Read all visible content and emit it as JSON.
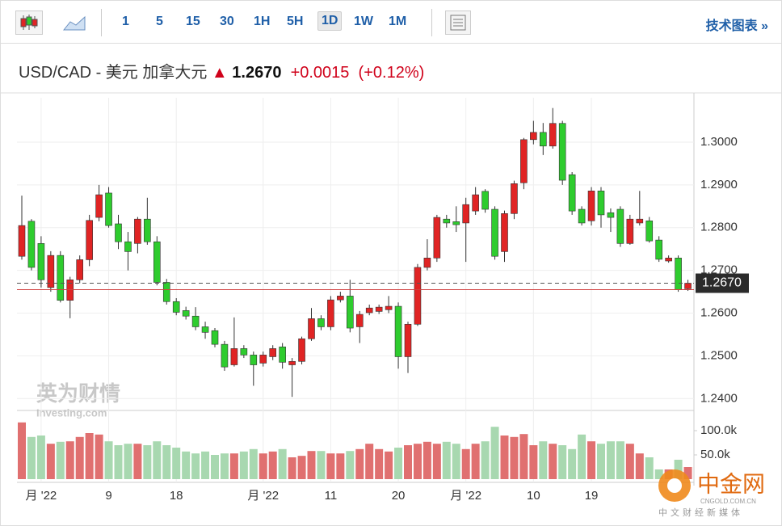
{
  "toolbar": {
    "intervals": [
      "1",
      "5",
      "15",
      "30",
      "1H",
      "5H",
      "1D",
      "1W",
      "1M"
    ],
    "selected": "1D",
    "link": "技术图表 »"
  },
  "header": {
    "pair": "USD/CAD - 美元 加拿大元",
    "price": "1.2670",
    "change": "+0.0015",
    "change_pct": "(+0.12%)"
  },
  "watermarks": {
    "left": "英为财情",
    "left_sub": "Investing.com",
    "right": "中金网",
    "right_url": "CNGOLD.COM.CN",
    "right_sub": "中文财经新媒体"
  },
  "chart_data": {
    "type": "candlestick",
    "categories": [
      null,
      null,
      "月 '22",
      null,
      null,
      null,
      null,
      null,
      null,
      "9",
      null,
      null,
      null,
      null,
      null,
      null,
      "18",
      null,
      null,
      null,
      null,
      null,
      null,
      null,
      null,
      "月 '22",
      null,
      null,
      null,
      null,
      null,
      null,
      "11",
      null,
      null,
      null,
      null,
      null,
      null,
      "20",
      null,
      null,
      null,
      null,
      null,
      null,
      "月 '22",
      null,
      null,
      null,
      null,
      null,
      null,
      "10",
      null,
      null,
      null,
      null,
      null,
      "19",
      null,
      null,
      null,
      null,
      null,
      null,
      null,
      null,
      null,
      null
    ],
    "open": [
      1.2733,
      1.2815,
      1.2763,
      1.266,
      1.2735,
      1.263,
      1.2678,
      1.2725,
      1.2824,
      1.2881,
      1.2809,
      1.2767,
      1.2763,
      1.282,
      1.2767,
      1.2672,
      1.2627,
      1.2606,
      1.2593,
      1.2568,
      1.2559,
      1.2527,
      1.2479,
      1.2517,
      1.2502,
      1.2483,
      1.2498,
      1.2521,
      1.2479,
      1.2487,
      1.254,
      1.2587,
      1.2568,
      1.2631,
      1.264,
      1.2568,
      1.2601,
      1.2604,
      1.2608,
      1.2616,
      1.2498,
      1.2574,
      1.2707,
      1.2729,
      1.282,
      1.2814,
      1.2811,
      1.2839,
      1.2885,
      1.2843,
      1.2744,
      1.2833,
      1.2905,
      1.3006,
      1.3023,
      1.2991,
      1.3044,
      1.2924,
      1.2843,
      1.2816,
      1.2886,
      1.2835,
      1.2843,
      1.2763,
      1.2811,
      1.2816,
      1.2771,
      1.2722,
      1.2729,
      1.2657
    ],
    "high": [
      1.2875,
      1.282,
      1.278,
      1.2745,
      1.2745,
      1.2685,
      1.2735,
      1.283,
      1.29,
      1.2895,
      1.283,
      1.279,
      1.2825,
      1.287,
      1.278,
      1.268,
      1.2635,
      1.2615,
      1.2614,
      1.258,
      1.2565,
      1.2535,
      1.259,
      1.2525,
      1.251,
      1.251,
      1.2525,
      1.253,
      1.2495,
      1.2545,
      1.2612,
      1.2595,
      1.264,
      1.265,
      1.2678,
      1.2605,
      1.262,
      1.262,
      1.264,
      1.2625,
      1.258,
      1.2715,
      1.2773,
      1.283,
      1.283,
      1.285,
      1.287,
      1.2895,
      1.289,
      1.285,
      1.284,
      1.291,
      1.301,
      1.305,
      1.3045,
      1.308,
      1.305,
      1.293,
      1.285,
      1.2895,
      1.2895,
      1.2845,
      1.285,
      1.283,
      1.2886,
      1.2825,
      1.278,
      1.2735,
      1.2735,
      1.2678
    ],
    "low": [
      1.2725,
      1.27,
      1.266,
      1.265,
      1.2625,
      1.2588,
      1.267,
      1.271,
      1.2815,
      1.28,
      1.275,
      1.27,
      1.274,
      1.276,
      1.2665,
      1.262,
      1.2595,
      1.2585,
      1.256,
      1.254,
      1.252,
      1.2465,
      1.2475,
      1.2495,
      1.243,
      1.2475,
      1.249,
      1.247,
      1.2404,
      1.248,
      1.2535,
      1.256,
      1.256,
      1.2625,
      1.2555,
      1.253,
      1.2595,
      1.2598,
      1.26,
      1.247,
      1.246,
      1.257,
      1.27,
      1.272,
      1.28,
      1.279,
      1.272,
      1.283,
      1.2835,
      1.2725,
      1.272,
      1.282,
      1.289,
      1.2995,
      1.297,
      1.2985,
      1.29,
      1.283,
      1.2805,
      1.2805,
      1.28,
      1.279,
      1.2755,
      1.276,
      1.2805,
      1.2765,
      1.272,
      1.2718,
      1.265,
      1.2652
    ],
    "close": [
      1.2805,
      1.2707,
      1.2678,
      1.2735,
      1.263,
      1.2678,
      1.2725,
      1.2817,
      1.2877,
      1.2805,
      1.2767,
      1.2744,
      1.282,
      1.2767,
      1.2672,
      1.2627,
      1.2602,
      1.2593,
      1.2568,
      1.2555,
      1.2527,
      1.2474,
      1.2517,
      1.2502,
      1.2479,
      1.2502,
      1.2517,
      1.2485,
      1.2487,
      1.254,
      1.2587,
      1.2568,
      1.2631,
      1.264,
      1.2565,
      1.2597,
      1.2612,
      1.2614,
      1.2616,
      1.2498,
      1.2574,
      1.2707,
      1.2729,
      1.2824,
      1.2811,
      1.2807,
      1.2854,
      1.2877,
      1.2843,
      1.2733,
      1.2833,
      1.2903,
      1.3006,
      1.3023,
      1.2991,
      1.3044,
      1.2911,
      1.2839,
      1.2811,
      1.2886,
      1.283,
      1.2824,
      1.2763,
      1.282,
      1.282,
      1.2769,
      1.2726,
      1.2729,
      1.2655,
      1.267
    ],
    "volume": [
      117000,
      87000,
      90000,
      73000,
      77000,
      78000,
      87000,
      95000,
      92000,
      78000,
      70000,
      73000,
      73000,
      70000,
      78000,
      70000,
      65000,
      57000,
      53000,
      57000,
      50000,
      53000,
      53000,
      57000,
      62000,
      53000,
      57000,
      62000,
      45000,
      48000,
      58000,
      58000,
      53000,
      53000,
      58000,
      62000,
      73000,
      62000,
      57000,
      65000,
      70000,
      73000,
      77000,
      73000,
      77000,
      73000,
      62000,
      73000,
      78000,
      108000,
      90000,
      87000,
      93000,
      70000,
      78000,
      73000,
      70000,
      62000,
      92000,
      78000,
      73000,
      78000,
      78000,
      73000,
      53000,
      45000,
      20000,
      20000,
      40000,
      25000
    ],
    "up_color": "#e02424",
    "down_color": "#2ecc2e",
    "volume_up_color": "#e07070",
    "volume_down_color": "#a8d8b0",
    "ylim": [
      1.2376,
      1.3104
    ],
    "yticks": [
      {
        "value": 1.24,
        "label": "1.2400"
      },
      {
        "value": 1.25,
        "label": "1.2500"
      },
      {
        "value": 1.26,
        "label": "1.2600"
      },
      {
        "value": 1.27,
        "label": "1.2700"
      },
      {
        "value": 1.28,
        "label": "1.2800"
      },
      {
        "value": 1.29,
        "label": "1.2900"
      },
      {
        "value": 1.3,
        "label": "1.3000"
      }
    ],
    "volume_ylim": [
      0,
      140000
    ],
    "volume_ticks": [
      {
        "value": 50000,
        "label": "50.0k"
      },
      {
        "value": 100000,
        "label": "100.0k"
      }
    ],
    "last_price": {
      "value": 1.267,
      "label": "1.2670"
    },
    "reference_line": 1.2655,
    "grid": true
  }
}
